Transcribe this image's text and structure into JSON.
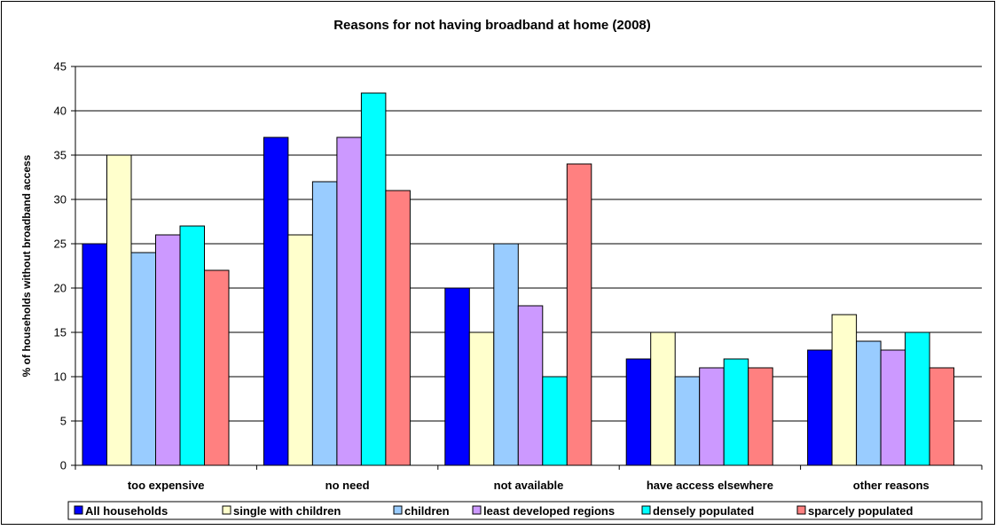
{
  "chart_data": {
    "type": "bar",
    "title": "Reasons for not having broadband at home (2008)",
    "xlabel": "",
    "ylabel": "% of households without broadband access",
    "ylim": [
      0,
      45
    ],
    "yticks": [
      0,
      5,
      10,
      15,
      20,
      25,
      30,
      35,
      40,
      45
    ],
    "grid": true,
    "legend_position": "bottom",
    "categories": [
      "too expensive",
      "no need",
      "not available",
      "have access elsewhere",
      "other reasons"
    ],
    "series": [
      {
        "name": "All households",
        "color": "#0000ff",
        "values": [
          25,
          37,
          20,
          12,
          13
        ]
      },
      {
        "name": "single with children",
        "color": "#ffffcc",
        "values": [
          35,
          26,
          15,
          15,
          17
        ]
      },
      {
        "name": "children",
        "color": "#99ccff",
        "values": [
          24,
          32,
          25,
          10,
          14
        ]
      },
      {
        "name": "least developed regions",
        "color": "#cc99ff",
        "values": [
          26,
          37,
          18,
          11,
          13
        ]
      },
      {
        "name": "densely populated",
        "color": "#00ffff",
        "values": [
          27,
          42,
          10,
          12,
          15
        ]
      },
      {
        "name": "sparcely populated",
        "color": "#ff8080",
        "values": [
          22,
          31,
          34,
          11,
          11
        ]
      }
    ]
  }
}
